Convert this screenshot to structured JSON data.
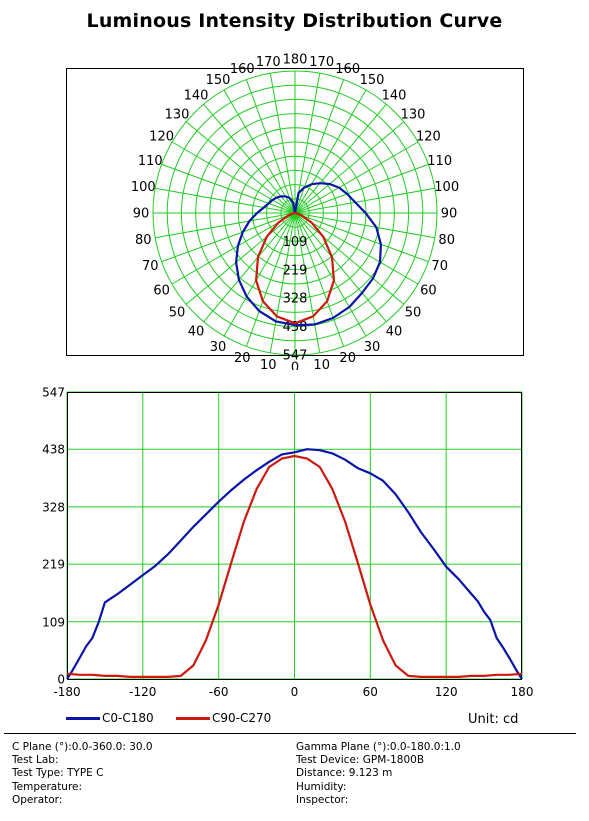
{
  "title": "Luminous Intensity Distribution Curve",
  "colors": {
    "grid": "#22cc22",
    "c0": "#0a14a8",
    "c90": "#cc1a10"
  },
  "chart_data": [
    {
      "type": "polar",
      "title": "Luminous Intensity Distribution Curve",
      "angle_labels": [
        "0",
        "10",
        "20",
        "30",
        "40",
        "50",
        "60",
        "70",
        "80",
        "90",
        "100",
        "110",
        "120",
        "130",
        "140",
        "150",
        "160",
        "170",
        "180"
      ],
      "radial_ticks": [
        109,
        219,
        328,
        438,
        547
      ],
      "rmax": 547,
      "series": [
        {
          "name": "C0-C180",
          "color": "#0a14a8",
          "right_angles": [
            0,
            10,
            20,
            30,
            40,
            50,
            60,
            70,
            80,
            90,
            100,
            110,
            120,
            130,
            140,
            150,
            160,
            170,
            180
          ],
          "right_values": [
            432,
            436,
            430,
            418,
            402,
            392,
            378,
            352,
            318,
            272,
            236,
            214,
            196,
            174,
            150,
            128,
            104,
            78,
            0
          ],
          "left_angles": [
            0,
            10,
            20,
            30,
            40,
            50,
            60,
            70,
            80,
            90,
            100,
            110,
            120,
            130,
            140,
            150,
            160,
            170,
            180
          ],
          "left_values": [
            432,
            424,
            402,
            372,
            336,
            296,
            254,
            214,
            178,
            146,
            122,
            108,
            100,
            92,
            84,
            74,
            62,
            40,
            0
          ]
        },
        {
          "name": "C90-C270",
          "color": "#cc1a10",
          "right_angles": [
            0,
            10,
            20,
            30,
            40,
            50,
            60,
            70,
            80,
            90
          ],
          "right_values": [
            425,
            404,
            362,
            300,
            222,
            142,
            74,
            26,
            6,
            0
          ],
          "left_angles": [
            0,
            10,
            20,
            30,
            40,
            50,
            60,
            70,
            80,
            90
          ],
          "left_values": [
            425,
            404,
            362,
            300,
            222,
            142,
            74,
            26,
            6,
            0
          ]
        }
      ]
    },
    {
      "type": "line",
      "x_ticks": [
        -180,
        -120,
        -60,
        0,
        60,
        120,
        180
      ],
      "y_ticks": [
        0,
        109,
        219,
        328,
        438,
        547
      ],
      "xlim": [
        -180,
        180
      ],
      "ylim": [
        0,
        547
      ],
      "grid": true,
      "legend": "bottom-left",
      "unit": "Unit: cd",
      "series": [
        {
          "name": "C0-C180",
          "color": "#0a14a8",
          "x": [
            -180,
            -176,
            -170,
            -165,
            -160,
            -155,
            -150,
            -145,
            -140,
            -130,
            -120,
            -110,
            -100,
            -90,
            -80,
            -70,
            -60,
            -50,
            -40,
            -30,
            -20,
            -10,
            0,
            10,
            20,
            30,
            40,
            50,
            60,
            70,
            80,
            90,
            100,
            110,
            120,
            130,
            140,
            145,
            150,
            155,
            160,
            165,
            170,
            176,
            180
          ],
          "y": [
            0,
            15,
            40,
            62,
            78,
            108,
            146,
            154,
            162,
            180,
            198,
            216,
            238,
            264,
            290,
            314,
            338,
            360,
            380,
            398,
            414,
            428,
            432,
            438,
            436,
            430,
            418,
            402,
            392,
            378,
            352,
            318,
            280,
            248,
            214,
            190,
            162,
            148,
            128,
            112,
            78,
            60,
            40,
            15,
            0
          ]
        },
        {
          "name": "C90-C270",
          "color": "#cc1a10",
          "x": [
            -180,
            -170,
            -160,
            -150,
            -140,
            -130,
            -120,
            -110,
            -100,
            -90,
            -80,
            -70,
            -60,
            -50,
            -40,
            -30,
            -20,
            -10,
            0,
            10,
            20,
            30,
            40,
            50,
            60,
            70,
            80,
            90,
            100,
            110,
            120,
            130,
            140,
            150,
            160,
            170,
            180
          ],
          "y": [
            10,
            8,
            8,
            6,
            6,
            4,
            4,
            4,
            4,
            6,
            26,
            74,
            142,
            222,
            300,
            362,
            404,
            420,
            425,
            420,
            404,
            362,
            300,
            222,
            142,
            74,
            26,
            6,
            4,
            4,
            4,
            4,
            6,
            6,
            8,
            8,
            10
          ]
        }
      ]
    }
  ],
  "legend": {
    "c0_label": "C0-C180",
    "c90_label": "C90-C270"
  },
  "unit_label": "Unit: cd",
  "info": {
    "left": [
      "C Plane (°):0.0-360.0: 30.0",
      "Test Lab:",
      "Test Type: TYPE C",
      "Temperature:",
      "Operator:"
    ],
    "right": [
      "Gamma Plane (°):0.0-180.0:1.0",
      "Test Device: GPM-1800B",
      "Distance: 9.123 m",
      "Humidity:",
      "Inspector:"
    ]
  }
}
